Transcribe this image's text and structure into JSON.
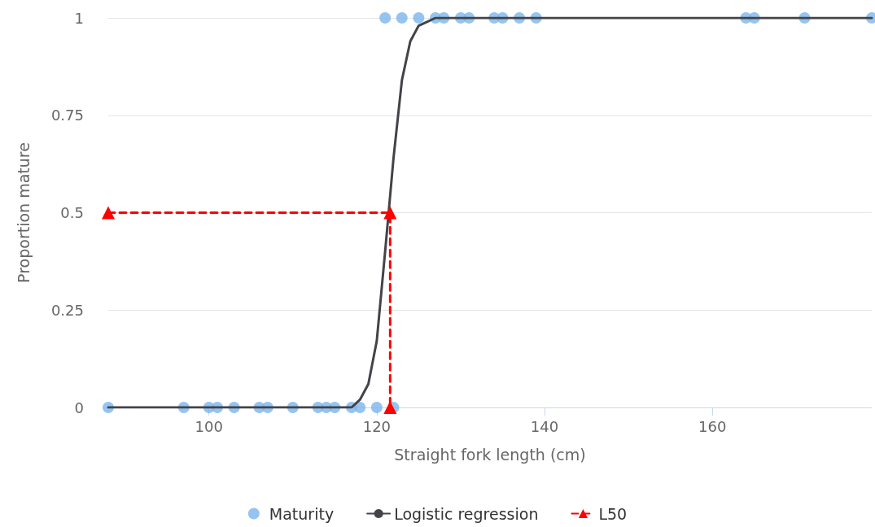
{
  "chart_data": {
    "type": "scatter",
    "xlabel": "Straight fork length (cm)",
    "ylabel": "Proportion mature",
    "xlim": [
      88,
      179
    ],
    "xticks": [
      100,
      120,
      140,
      160
    ],
    "ylim": [
      0,
      1
    ],
    "yticks": [
      0,
      0.25,
      0.5,
      0.75,
      1
    ],
    "grid": "y",
    "legend": "bottom",
    "series": [
      {
        "name": "Maturity",
        "color": "#7cb5ec",
        "marker": "circle",
        "x": [
          88,
          97,
          100,
          101,
          103,
          106,
          107,
          110,
          113,
          114,
          115,
          117,
          118,
          120,
          122,
          121,
          123,
          125,
          127,
          128,
          130,
          131,
          134,
          135,
          137,
          139,
          164,
          165,
          171,
          179
        ],
        "values": [
          0,
          0,
          0,
          0,
          0,
          0,
          0,
          0,
          0,
          0,
          0,
          0,
          0,
          0,
          0,
          1,
          1,
          1,
          1,
          1,
          1,
          1,
          1,
          1,
          1,
          1,
          1,
          1,
          1,
          1
        ]
      },
      {
        "name": "Logistic regression",
        "type": "line",
        "color": "#434348",
        "marker": "none",
        "line_style": "solid",
        "x": [
          88,
          117,
          118,
          119,
          120,
          121,
          122,
          123,
          124,
          125,
          126,
          127,
          179
        ],
        "values": [
          0,
          0,
          0.02,
          0.06,
          0.17,
          0.4,
          0.64,
          0.84,
          0.94,
          0.98,
          0.99,
          1,
          1
        ]
      },
      {
        "name": "L50",
        "type": "line",
        "color": "#ff0000",
        "marker": "triangle",
        "line_style": "dashed",
        "x": [
          88,
          121.6,
          121.6
        ],
        "values": [
          0.5,
          0.5,
          0
        ]
      }
    ]
  }
}
